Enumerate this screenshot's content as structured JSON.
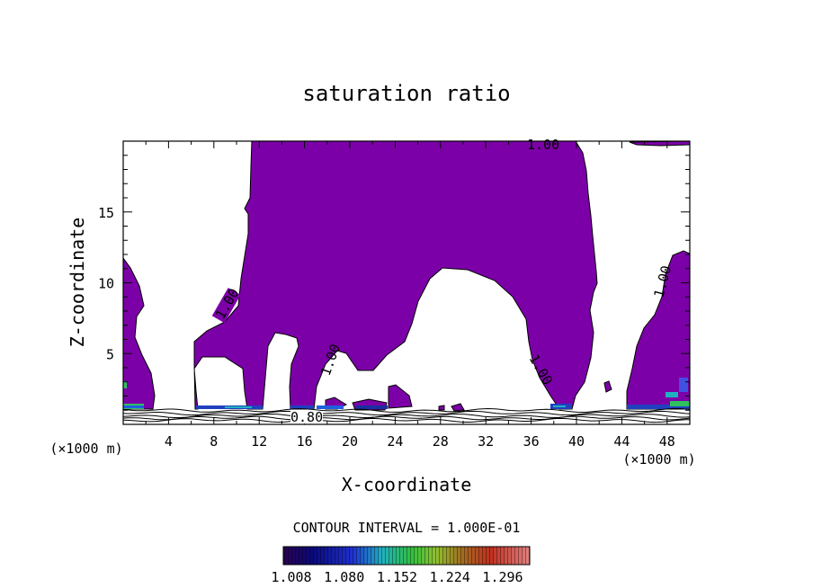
{
  "chart_data": {
    "type": "contour",
    "title": "saturation ratio",
    "xlabel": "X-coordinate",
    "ylabel": "Z-coordinate",
    "x_unit": "(×1000 m)",
    "x_unit_right": "(×1000 m)",
    "xlim": [
      0,
      50
    ],
    "ylim": [
      0,
      20
    ],
    "x_ticks": [
      "4",
      "8",
      "12",
      "16",
      "20",
      "24",
      "28",
      "32",
      "36",
      "40",
      "44",
      "48"
    ],
    "y_ticks": [
      "5",
      "10",
      "15"
    ],
    "contour_interval_text": "CONTOUR INTERVAL = 1.000E-01",
    "contour_labels": [
      "1.00",
      "1.00",
      "1.00",
      "1.00",
      "1.00",
      "0.80"
    ],
    "colorbar": {
      "ticks": [
        "1.008",
        "1.080",
        "1.152",
        "1.224",
        "1.296"
      ],
      "fill_color": "#7c00a8"
    }
  }
}
